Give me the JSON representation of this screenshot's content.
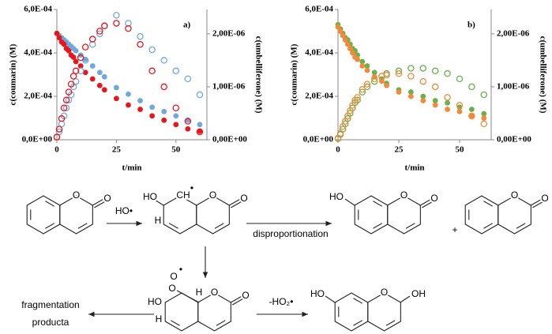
{
  "chart_data": [
    {
      "type": "scatter",
      "panel_label": "a)",
      "x_label": "t/min",
      "y_label": "c(coumarin) (M)",
      "y2_label": "c(umbelliferone) (M)",
      "x": [
        0,
        1,
        2,
        3,
        4,
        5,
        6,
        7,
        8,
        10,
        12,
        15,
        18,
        20,
        25,
        30,
        35,
        40,
        45,
        50,
        55,
        60
      ],
      "xlim": [
        0,
        63
      ],
      "xticks": [
        0,
        25,
        50
      ],
      "ylim": [
        0,
        0.0006
      ],
      "yticks": [
        {
          "value": 0,
          "label": "0,0E+00"
        },
        {
          "value": 0.0002,
          "label": "2,0E-04"
        },
        {
          "value": 0.0004,
          "label": "4,0E-04"
        },
        {
          "value": 0.0006,
          "label": "6,0E-04"
        }
      ],
      "y2lim": [
        0,
        2.46e-06
      ],
      "y2ticks": [
        {
          "value": 0,
          "label": "0,00E+00"
        },
        {
          "value": 1e-06,
          "label": "1,00E-06"
        },
        {
          "value": 2e-06,
          "label": "2,00E-06"
        }
      ],
      "series": [
        {
          "color": "#6fa8dc",
          "marker": "filled",
          "values": [
            0.00049,
            0.00048,
            0.00047,
            0.00046,
            0.00045,
            0.00044,
            0.00043,
            0.00042,
            0.00041,
            0.00039,
            0.00037,
            0.00034,
            0.00031,
            0.00029,
            0.00024,
            0.00021,
            0.00018,
            0.00015,
            0.00013,
            0.00011,
            9e-05,
            7e-05
          ]
        },
        {
          "color": "#e8161c",
          "marker": "filled",
          "values": [
            0.00049,
            0.00047,
            0.00045,
            0.00044,
            0.00042,
            0.00041,
            0.00039,
            0.00038,
            0.00036,
            0.00034,
            0.00031,
            0.00028,
            0.00025,
            0.00023,
            0.00019,
            0.00016,
            0.00014,
            0.00011,
            9e-05,
            7e-05,
            5e-05,
            4e-05
          ]
        },
        {
          "color": "#6fa8dc",
          "marker": "open",
          "axis": "y2",
          "values": [
            5e-08,
            1.5e-07,
            3e-07,
            4.5e-07,
            6e-07,
            7.5e-07,
            8.5e-07,
            1e-06,
            1.1e-06,
            1.3e-06,
            1.5e-06,
            1.8e-06,
            2e-06,
            2.15e-06,
            2.35e-06,
            2.2e-06,
            1.95e-06,
            1.7e-06,
            1.5e-06,
            1.3e-06,
            1.15e-06,
            8.5e-07
          ]
        },
        {
          "color": "#e8161c",
          "marker": "open",
          "axis": "y2",
          "values": [
            5e-08,
            2e-07,
            4e-07,
            6e-07,
            7.5e-07,
            9e-07,
            1.05e-06,
            1.2e-06,
            1.3e-06,
            1.55e-06,
            1.75e-06,
            1.9e-06,
            2.05e-06,
            2.15e-06,
            2.2e-06,
            2.1e-06,
            1.8e-06,
            1.3e-06,
            1e-06,
            6e-07,
            3.5e-07,
            1.5e-07
          ]
        }
      ]
    },
    {
      "type": "scatter",
      "panel_label": "b)",
      "x_label": "t/min",
      "y_label": "c(coumarin) (M)",
      "y2_label": "c(umbelliferone) (M)",
      "x": [
        0,
        1,
        2,
        3,
        4,
        5,
        6,
        7,
        8,
        10,
        12,
        15,
        18,
        20,
        25,
        30,
        35,
        40,
        45,
        50,
        55,
        60
      ],
      "xlim": [
        0,
        63
      ],
      "xticks": [
        0,
        25,
        50
      ],
      "ylim": [
        0,
        0.0006
      ],
      "yticks": [
        {
          "value": 0,
          "label": "0,0E+00"
        },
        {
          "value": 0.0002,
          "label": "2,0E-04"
        },
        {
          "value": 0.0004,
          "label": "4,0E-04"
        },
        {
          "value": 0.0006,
          "label": "6,0E-04"
        }
      ],
      "y2lim": [
        0,
        2.46e-06
      ],
      "y2ticks": [
        {
          "value": 0,
          "label": "0,00E+00"
        },
        {
          "value": 1e-06,
          "label": "1,00E-06"
        },
        {
          "value": 2e-06,
          "label": "2,00E-06"
        }
      ],
      "series": [
        {
          "color": "#6ab04c",
          "marker": "filled",
          "values": [
            0.00053,
            0.00051,
            0.00049,
            0.00047,
            0.00046,
            0.00044,
            0.00042,
            0.00041,
            0.00039,
            0.00036,
            0.00034,
            0.00031,
            0.00028,
            0.00026,
            0.00023,
            0.00022,
            0.0002,
            0.00018,
            0.00017,
            0.00015,
            0.00014,
            0.00012
          ]
        },
        {
          "color": "#f28a3a",
          "marker": "filled",
          "values": [
            0.00052,
            0.0005,
            0.00048,
            0.00046,
            0.00044,
            0.00042,
            0.0004,
            0.00038,
            0.00037,
            0.00034,
            0.00032,
            0.00029,
            0.00027,
            0.00025,
            0.00022,
            0.0002,
            0.00018,
            0.00016,
            0.00014,
            0.00013,
            0.00011,
            0.0001
          ]
        },
        {
          "color": "#6ab04c",
          "marker": "open",
          "axis": "y2",
          "values": [
            2e-08,
            1e-07,
            2e-07,
            3e-07,
            4e-07,
            5e-07,
            6e-07,
            7e-07,
            7.5e-07,
            9e-07,
            1e-06,
            1.1e-06,
            1.2e-06,
            1.25e-06,
            1.3e-06,
            1.35e-06,
            1.35e-06,
            1.3e-06,
            1.25e-06,
            1.15e-06,
            1e-06,
            8.5e-07
          ]
        },
        {
          "color": "#f28a3a",
          "marker": "open",
          "axis": "y2",
          "values": [
            3e-08,
            1.2e-07,
            2.5e-07,
            3.5e-07,
            4.5e-07,
            5.5e-07,
            6.5e-07,
            7.5e-07,
            8e-07,
            9.5e-07,
            1.05e-06,
            1.15e-06,
            1.2e-06,
            1.22e-06,
            1.25e-06,
            1.2e-06,
            1.1e-06,
            1e-06,
            8e-07,
            6.5e-07,
            4.5e-07,
            3e-07
          ]
        }
      ]
    }
  ],
  "scheme": {
    "reagent": "HO•",
    "condition": "disproportionation",
    "plus": "+",
    "fragmentation": [
      "fragmentation",
      "producta"
    ],
    "loss": "-HO₂•",
    "atoms": [
      "O",
      "O",
      "HO",
      "H",
      "CH",
      "•",
      "O",
      "O",
      "HO",
      "O",
      "O",
      "O",
      "O",
      "O",
      "O",
      "•",
      "HO",
      "H",
      "H",
      "O",
      "O",
      "HO",
      "O",
      "OH"
    ]
  }
}
